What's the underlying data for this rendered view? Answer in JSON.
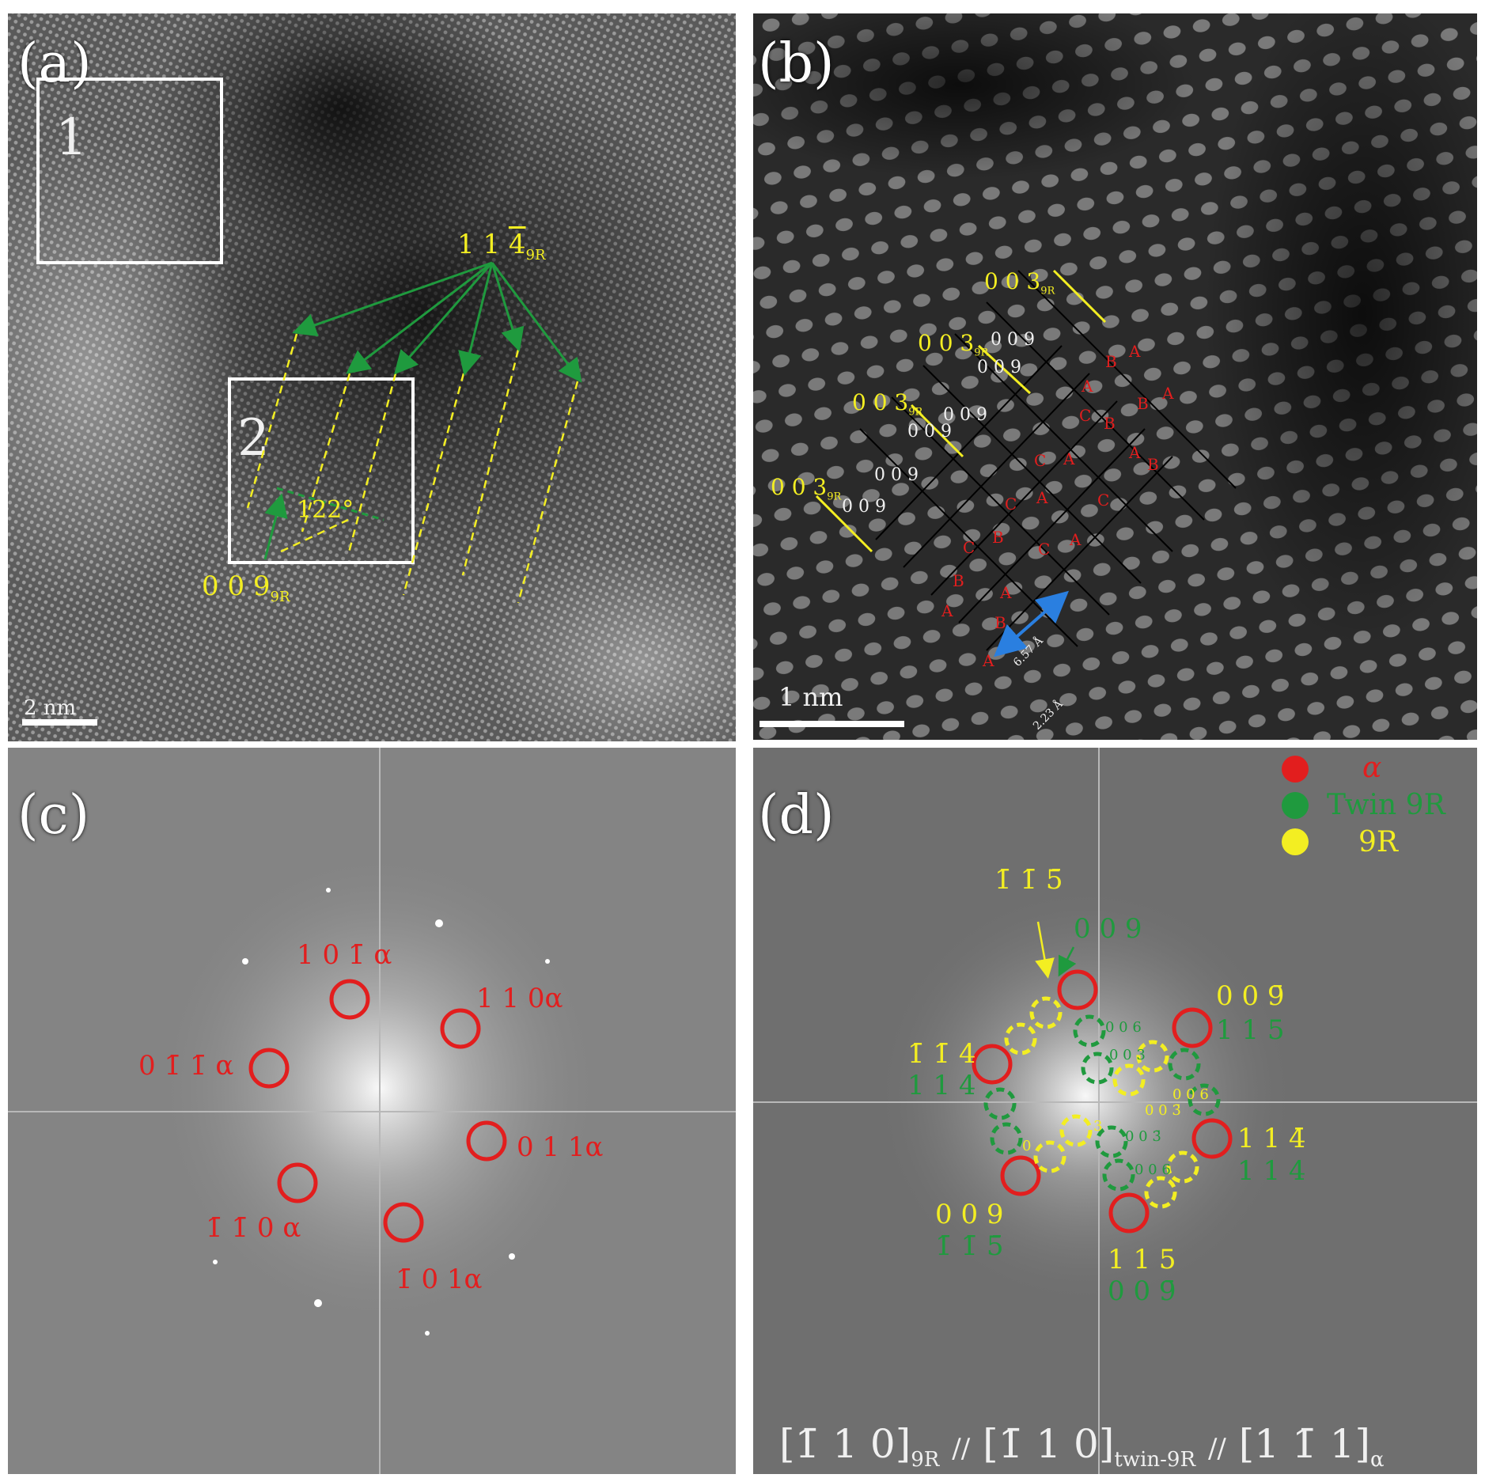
{
  "panels": {
    "a": {
      "label": "(a)",
      "box1_label": "1",
      "box2_label": "2",
      "plane_label_main": "1 1",
      "plane_label_bar": "4",
      "plane_label_sub": "9R",
      "plane2_main": "0 0 9",
      "plane2_sub": "9R",
      "angle_label": "122°",
      "scale_bar": "2 nm"
    },
    "b": {
      "label": "(b)",
      "scale_bar": "1 nm",
      "plane_labels_yellow": [
        "0 0 3",
        "0 0 3",
        "0 0 3",
        "0 0 3"
      ],
      "plane_label_sub": "9R",
      "plane_labels_white": [
        "0 0 9",
        "0 0 9",
        "0 0 9",
        "0 0 9",
        "0 0 9",
        "0 0 9"
      ],
      "stacking_letters": [
        "A",
        "B",
        "B",
        "A",
        "C",
        "A",
        "B",
        "A",
        "C",
        "A",
        "C",
        "A",
        "C",
        "B",
        "C",
        "A",
        "B",
        "C",
        "A",
        "B",
        "B",
        "A",
        "A"
      ],
      "distance_1": "6.57 Å",
      "distance_2": "2.23 Å"
    },
    "c": {
      "label": "(c)",
      "spots": [
        {
          "text": "1 0 1̄ α"
        },
        {
          "text": "1  1  0α"
        },
        {
          "text": "0  1̄ 1̄  α"
        },
        {
          "text": "0  1 1α"
        },
        {
          "text": "1̄ 1̄  0 α"
        },
        {
          "text": "1̄ 0 1α"
        }
      ]
    },
    "d": {
      "label": "(d)",
      "legend": [
        {
          "label": "α",
          "color": "#e21e1e"
        },
        {
          "label": "Twin 9R",
          "color": "#1f9a3e"
        },
        {
          "label": "9R",
          "color": "#f3ee22"
        }
      ],
      "labels_yellow": [
        "1̄ 1̄ 5̄",
        "0 0 9̄",
        "1̄ 1̄ 4",
        "1 1 4̄",
        "0 0 9",
        "1 1 5"
      ],
      "labels_green": [
        "0 0 9",
        "1 1 5",
        "1 1 4",
        "1 1 4",
        "1̄ 1̄ 5̄",
        "0 0 9̄"
      ],
      "small_green": [
        "0 0 6",
        "0 0 3",
        "0 0 3̄",
        "0 0 6"
      ],
      "small_yellow": [
        "0 0 6",
        "0 0 3̄",
        "3",
        "0"
      ],
      "zone_axis": {
        "part1": "[1̄ 1 0]",
        "sub1": "9R",
        "sep": "//",
        "part2": "[1̄ 1 0]",
        "sub2": "twin-9R",
        "part3": "[1 1̄ 1]",
        "sub3": "α"
      }
    }
  },
  "colors": {
    "yellow": "#f3ee22",
    "green": "#1f9a3e",
    "red": "#e21e1e",
    "blue": "#2a7fe0",
    "white": "#ffffff"
  }
}
